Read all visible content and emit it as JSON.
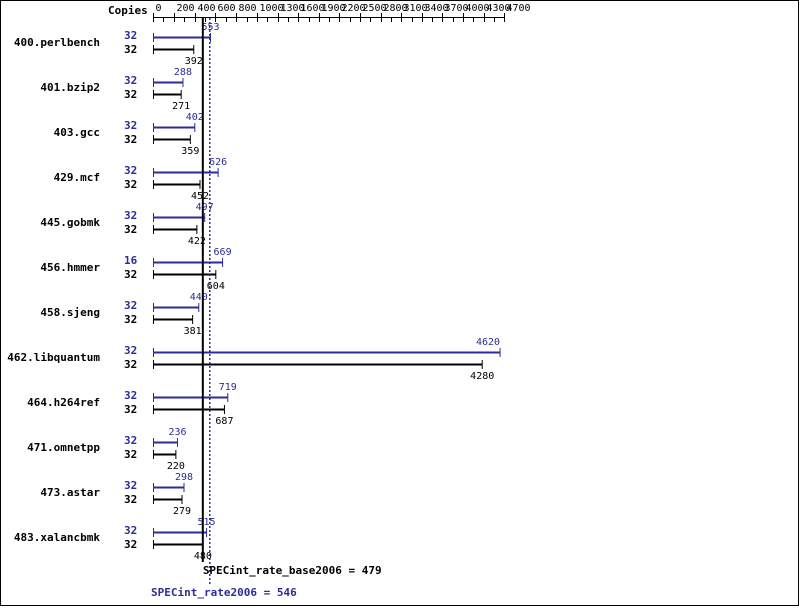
{
  "chart_data": {
    "type": "bar",
    "orientation": "horizontal",
    "copies_header": "Copies",
    "x_ticks": [
      0,
      200,
      400,
      600,
      800,
      1000,
      1300,
      1600,
      1900,
      2200,
      2500,
      2800,
      3100,
      3400,
      3700,
      4000,
      4300,
      4700
    ],
    "xlim": [
      0,
      4700
    ],
    "colors": {
      "peak": "#2b2b9a",
      "base": "#000000"
    },
    "benchmarks": [
      {
        "name": "400.perlbench",
        "peak_copies": "32",
        "peak": 553,
        "base_copies": "32",
        "base": 392
      },
      {
        "name": "401.bzip2",
        "peak_copies": "32",
        "peak": 288,
        "base_copies": "32",
        "base": 271
      },
      {
        "name": "403.gcc",
        "peak_copies": "32",
        "peak": 402,
        "base_copies": "32",
        "base": 359
      },
      {
        "name": "429.mcf",
        "peak_copies": "32",
        "peak": 626,
        "base_copies": "32",
        "base": 452
      },
      {
        "name": "445.gobmk",
        "peak_copies": "32",
        "peak": 497,
        "base_copies": "32",
        "base": 422
      },
      {
        "name": "456.hmmer",
        "peak_copies": "16",
        "peak": 669,
        "base_copies": "32",
        "base": 604
      },
      {
        "name": "458.sjeng",
        "peak_copies": "32",
        "peak": 440,
        "base_copies": "32",
        "base": 381
      },
      {
        "name": "462.libquantum",
        "peak_copies": "32",
        "peak": 4620,
        "base_copies": "32",
        "base": 4280
      },
      {
        "name": "464.h264ref",
        "peak_copies": "32",
        "peak": 719,
        "base_copies": "32",
        "base": 687
      },
      {
        "name": "471.omnetpp",
        "peak_copies": "32",
        "peak": 236,
        "base_copies": "32",
        "base": 220
      },
      {
        "name": "473.astar",
        "peak_copies": "32",
        "peak": 298,
        "base_copies": "32",
        "base": 279
      },
      {
        "name": "483.xalancbmk",
        "peak_copies": "32",
        "peak": 515,
        "base_copies": "32",
        "base": 480
      }
    ],
    "summary": {
      "base_label": "SPECint_rate_base2006 = 479",
      "base_value": 479,
      "peak_label": "SPECint_rate2006 = 546",
      "peak_value": 546
    }
  }
}
